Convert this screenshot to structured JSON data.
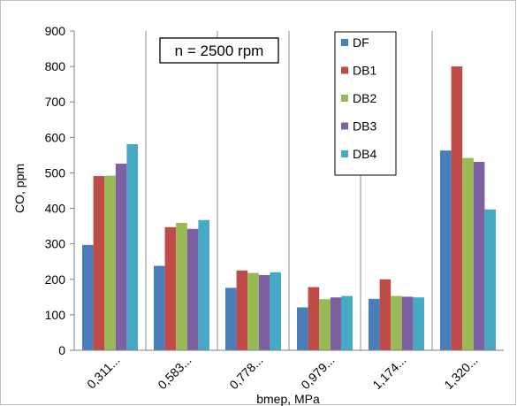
{
  "chart_data": {
    "type": "bar",
    "title": "",
    "annotation": "n = 2500 rpm",
    "xlabel": "bmep, MPa",
    "ylabel": "CO, ppm",
    "categories": [
      "0,311...",
      "0,583...",
      "0,778...",
      "0,979...",
      "1,174...",
      "1,320..."
    ],
    "ylim": [
      0,
      900
    ],
    "yticks": [
      0,
      100,
      200,
      300,
      400,
      500,
      600,
      700,
      800,
      900
    ],
    "grid": "vertical category separators",
    "legend_position": "top-right",
    "series": [
      {
        "name": "DF",
        "color": "#4a7ebb",
        "values": [
          297,
          238,
          176,
          121,
          145,
          563
        ]
      },
      {
        "name": "DB1",
        "color": "#be4b48",
        "values": [
          491,
          347,
          225,
          178,
          200,
          800
        ]
      },
      {
        "name": "DB2",
        "color": "#98b954",
        "values": [
          492,
          359,
          218,
          144,
          153,
          542
        ]
      },
      {
        "name": "DB3",
        "color": "#7d60a0",
        "values": [
          526,
          342,
          212,
          149,
          151,
          531
        ]
      },
      {
        "name": "DB4",
        "color": "#46aac5",
        "values": [
          581,
          367,
          220,
          153,
          149,
          397
        ]
      }
    ]
  }
}
